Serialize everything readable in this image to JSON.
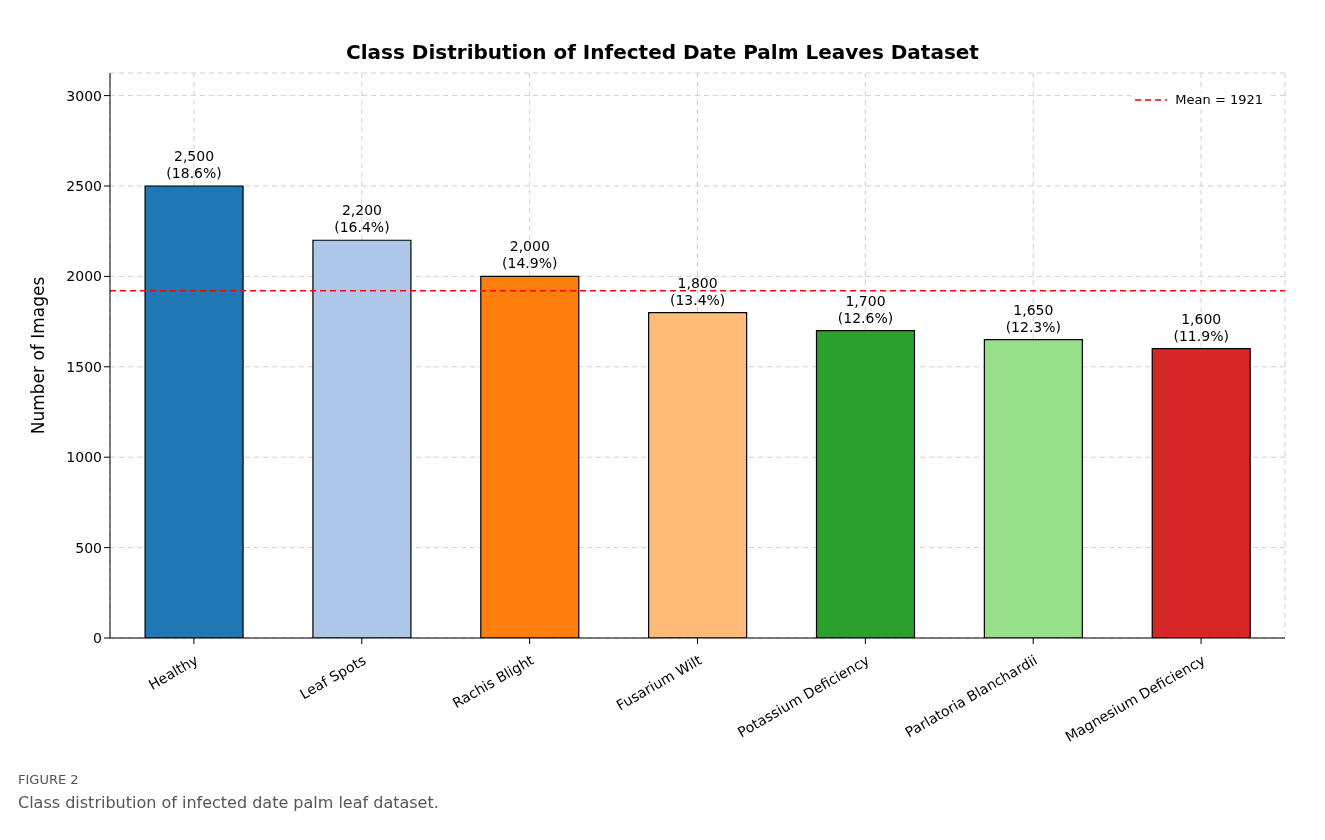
{
  "chart_data": {
    "type": "bar",
    "title": "Class Distribution of Infected Date Palm Leaves Dataset",
    "ylabel": "Number of Images",
    "categories": [
      "Healthy",
      "Leaf Spots",
      "Rachis Blight",
      "Fusarium Wilt",
      "Potassium Deficiency",
      "Parlatoria Blanchardii",
      "Magnesium Deficiency"
    ],
    "values": [
      2500,
      2200,
      2000,
      1800,
      1700,
      1650,
      1600
    ],
    "colors": [
      "#1f77b4",
      "#aec7e8",
      "#ff7f0e",
      "#ffbb78",
      "#2ca02c",
      "#98df8a",
      "#d62728"
    ],
    "value_labels": [
      "2,500\n(18.6%)",
      "2,200\n(16.4%)",
      "2,000\n(14.9%)",
      "1,800\n(13.4%)",
      "1,700\n(12.6%)",
      "1,650\n(12.3%)",
      "1,600\n(11.9%)"
    ],
    "ylim": [
      0,
      3125
    ],
    "yticks": [
      0,
      500,
      1000,
      1500,
      2000,
      2500,
      3000
    ],
    "grid": true,
    "legend": "top right",
    "ref_lines": [
      {
        "axis": "y",
        "value": 1921,
        "label": "Mean = 1921",
        "color": "#ff0000",
        "line_style": "dashed"
      }
    ],
    "annotations": [
      "FIGURE 2",
      "Class distribution of infected date palm leaf dataset."
    ]
  }
}
